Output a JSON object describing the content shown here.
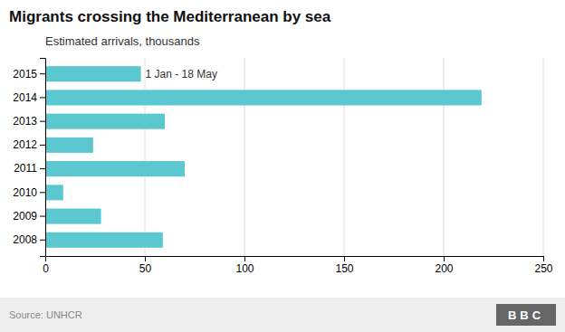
{
  "chart_data": {
    "type": "bar",
    "orientation": "horizontal",
    "title": "Migrants crossing the Mediterranean by sea",
    "subtitle": "Estimated arrivals, thousands",
    "source": "Source: UNHCR",
    "logo": "BBC",
    "categories": [
      "2008",
      "2009",
      "2010",
      "2011",
      "2012",
      "2013",
      "2014",
      "2015"
    ],
    "values": [
      59,
      28,
      9,
      70,
      24,
      60,
      219,
      48
    ],
    "color": "#5bc8d0",
    "annotations": [
      {
        "text": "1 Jan - 18 May",
        "category": "2015"
      }
    ],
    "xlim": [
      0,
      250
    ],
    "xticks": [
      0,
      50,
      100,
      150,
      200,
      250
    ],
    "grid": true
  }
}
